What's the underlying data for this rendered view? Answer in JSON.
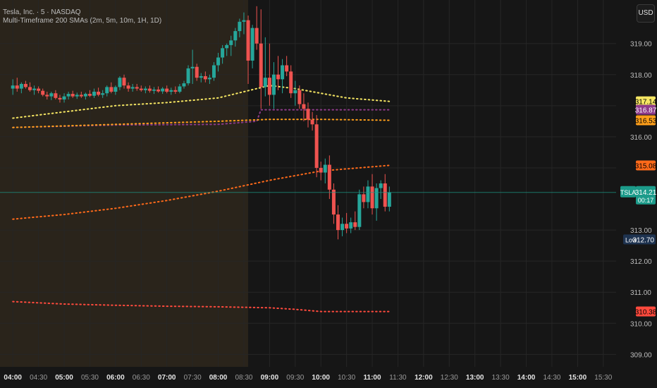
{
  "header": {
    "symbol_line": "Tesla, Inc. · 5 · NASDAQ",
    "indicator_line": "Multi-Timeframe 200 SMAs (2m, 5m, 10m, 1H, 1D)"
  },
  "currency_button": "USD",
  "price_scale_labels": [
    "319.00",
    "318.00",
    "316.00",
    "313.00",
    "312.00",
    "311.00",
    "310.00",
    "309.00"
  ],
  "time_labels": [
    {
      "t": "04:00",
      "bold": true
    },
    {
      "t": "04:30",
      "bold": false
    },
    {
      "t": "05:00",
      "bold": true
    },
    {
      "t": "05:30",
      "bold": false
    },
    {
      "t": "06:00",
      "bold": true
    },
    {
      "t": "06:30",
      "bold": false
    },
    {
      "t": "07:00",
      "bold": true
    },
    {
      "t": "07:30",
      "bold": false
    },
    {
      "t": "08:00",
      "bold": true
    },
    {
      "t": "08:30",
      "bold": false
    },
    {
      "t": "09:00",
      "bold": true
    },
    {
      "t": "09:30",
      "bold": false
    },
    {
      "t": "10:00",
      "bold": true
    },
    {
      "t": "10:30",
      "bold": false
    },
    {
      "t": "11:00",
      "bold": true
    },
    {
      "t": "11:30",
      "bold": false
    },
    {
      "t": "12:00",
      "bold": true
    },
    {
      "t": "12:30",
      "bold": false
    },
    {
      "t": "13:00",
      "bold": true
    },
    {
      "t": "13:30",
      "bold": false
    },
    {
      "t": "14:00",
      "bold": true
    },
    {
      "t": "14:30",
      "bold": false
    },
    {
      "t": "15:00",
      "bold": true
    },
    {
      "t": "15:30",
      "bold": false
    }
  ],
  "tags": [
    {
      "value": "317.14",
      "color": "#f5e663",
      "text_color": "#000000"
    },
    {
      "value": "316.87",
      "color": "#8e3a8a",
      "text_color": "#ffffff"
    },
    {
      "value": "316.53",
      "color": "#ff9f1a",
      "text_color": "#000000"
    },
    {
      "value": "315.08",
      "color": "#ff6a1a",
      "text_color": "#000000"
    },
    {
      "value": "310.38",
      "color": "#ff4a3d",
      "text_color": "#000000"
    }
  ],
  "current_price": {
    "symbol": "TSLA",
    "value": "314.21",
    "countdown": "00:17",
    "color": "#1c9b8a"
  },
  "low_marker": {
    "label": "Low",
    "value": "312.70",
    "color": "#1e3350"
  },
  "colors": {
    "up": "#26a69a",
    "down": "#ef5350",
    "premarket_bg": "#2a241b",
    "grid": "#262626"
  },
  "chart_data": {
    "type": "candlestick",
    "title": "Tesla, Inc. · 5 · NASDAQ",
    "interval": "5m",
    "ylim": [
      308.6,
      320.4
    ],
    "y_ticks": [
      309,
      310,
      311,
      312,
      313,
      315,
      316,
      317,
      318,
      319
    ],
    "x_range": [
      "03:45",
      "15:45"
    ],
    "premarket_end": "08:35",
    "candles": [
      {
        "t": "04:00",
        "o": 317.55,
        "h": 317.85,
        "l": 317.35,
        "c": 317.65
      },
      {
        "t": "04:05",
        "o": 317.65,
        "h": 317.9,
        "l": 317.45,
        "c": 317.55
      },
      {
        "t": "04:10",
        "o": 317.55,
        "h": 317.75,
        "l": 317.4,
        "c": 317.7
      },
      {
        "t": "04:15",
        "o": 317.7,
        "h": 317.8,
        "l": 317.55,
        "c": 317.6
      },
      {
        "t": "04:20",
        "o": 317.6,
        "h": 317.75,
        "l": 317.45,
        "c": 317.5
      },
      {
        "t": "04:25",
        "o": 317.5,
        "h": 317.65,
        "l": 317.35,
        "c": 317.55
      },
      {
        "t": "04:30",
        "o": 317.55,
        "h": 317.62,
        "l": 317.4,
        "c": 317.48
      },
      {
        "t": "04:35",
        "o": 317.48,
        "h": 317.55,
        "l": 317.3,
        "c": 317.35
      },
      {
        "t": "04:40",
        "o": 317.35,
        "h": 317.45,
        "l": 317.2,
        "c": 317.3
      },
      {
        "t": "04:45",
        "o": 317.3,
        "h": 317.45,
        "l": 317.18,
        "c": 317.4
      },
      {
        "t": "04:50",
        "o": 317.4,
        "h": 317.5,
        "l": 317.2,
        "c": 317.25
      },
      {
        "t": "04:55",
        "o": 317.25,
        "h": 317.35,
        "l": 317.1,
        "c": 317.2
      },
      {
        "t": "05:00",
        "o": 317.2,
        "h": 317.4,
        "l": 317.1,
        "c": 317.3
      },
      {
        "t": "05:05",
        "o": 317.3,
        "h": 317.45,
        "l": 317.2,
        "c": 317.38
      },
      {
        "t": "05:10",
        "o": 317.38,
        "h": 317.48,
        "l": 317.25,
        "c": 317.3
      },
      {
        "t": "05:15",
        "o": 317.3,
        "h": 317.42,
        "l": 317.22,
        "c": 317.35
      },
      {
        "t": "05:20",
        "o": 317.35,
        "h": 317.45,
        "l": 317.25,
        "c": 317.3
      },
      {
        "t": "05:25",
        "o": 317.3,
        "h": 317.42,
        "l": 317.2,
        "c": 317.38
      },
      {
        "t": "05:30",
        "o": 317.38,
        "h": 317.5,
        "l": 317.28,
        "c": 317.32
      },
      {
        "t": "05:35",
        "o": 317.32,
        "h": 317.55,
        "l": 317.25,
        "c": 317.45
      },
      {
        "t": "05:40",
        "o": 317.45,
        "h": 317.58,
        "l": 317.3,
        "c": 317.35
      },
      {
        "t": "05:45",
        "o": 317.35,
        "h": 317.5,
        "l": 317.25,
        "c": 317.4
      },
      {
        "t": "05:50",
        "o": 317.4,
        "h": 317.65,
        "l": 317.3,
        "c": 317.6
      },
      {
        "t": "05:55",
        "o": 317.6,
        "h": 317.75,
        "l": 317.4,
        "c": 317.45
      },
      {
        "t": "06:00",
        "o": 317.45,
        "h": 317.65,
        "l": 317.35,
        "c": 317.6
      },
      {
        "t": "06:05",
        "o": 317.6,
        "h": 317.95,
        "l": 317.5,
        "c": 317.9
      },
      {
        "t": "06:10",
        "o": 317.9,
        "h": 318.0,
        "l": 317.55,
        "c": 317.65
      },
      {
        "t": "06:15",
        "o": 317.65,
        "h": 317.75,
        "l": 317.45,
        "c": 317.55
      },
      {
        "t": "06:20",
        "o": 317.55,
        "h": 317.7,
        "l": 317.45,
        "c": 317.6
      },
      {
        "t": "06:25",
        "o": 317.6,
        "h": 317.7,
        "l": 317.48,
        "c": 317.55
      },
      {
        "t": "06:30",
        "o": 317.55,
        "h": 317.65,
        "l": 317.45,
        "c": 317.5
      },
      {
        "t": "06:35",
        "o": 317.5,
        "h": 317.62,
        "l": 317.4,
        "c": 317.55
      },
      {
        "t": "06:40",
        "o": 317.55,
        "h": 317.65,
        "l": 317.42,
        "c": 317.48
      },
      {
        "t": "06:45",
        "o": 317.48,
        "h": 317.6,
        "l": 317.38,
        "c": 317.52
      },
      {
        "t": "06:50",
        "o": 317.52,
        "h": 317.62,
        "l": 317.42,
        "c": 317.46
      },
      {
        "t": "06:55",
        "o": 317.46,
        "h": 317.6,
        "l": 317.38,
        "c": 317.55
      },
      {
        "t": "07:00",
        "o": 317.55,
        "h": 317.65,
        "l": 317.4,
        "c": 317.45
      },
      {
        "t": "07:05",
        "o": 317.45,
        "h": 317.58,
        "l": 317.35,
        "c": 317.5
      },
      {
        "t": "07:10",
        "o": 317.5,
        "h": 317.62,
        "l": 317.38,
        "c": 317.45
      },
      {
        "t": "07:15",
        "o": 317.45,
        "h": 317.7,
        "l": 317.4,
        "c": 317.62
      },
      {
        "t": "07:20",
        "o": 317.62,
        "h": 317.8,
        "l": 317.55,
        "c": 317.72
      },
      {
        "t": "07:25",
        "o": 317.72,
        "h": 318.3,
        "l": 317.65,
        "c": 318.2
      },
      {
        "t": "07:30",
        "o": 318.2,
        "h": 318.8,
        "l": 317.7,
        "c": 318.25
      },
      {
        "t": "07:35",
        "o": 318.25,
        "h": 318.35,
        "l": 317.8,
        "c": 317.9
      },
      {
        "t": "07:40",
        "o": 317.9,
        "h": 318.05,
        "l": 317.75,
        "c": 317.95
      },
      {
        "t": "07:45",
        "o": 317.95,
        "h": 318.1,
        "l": 317.75,
        "c": 317.85
      },
      {
        "t": "07:50",
        "o": 317.85,
        "h": 318.0,
        "l": 317.7,
        "c": 317.9
      },
      {
        "t": "07:55",
        "o": 317.9,
        "h": 318.4,
        "l": 317.8,
        "c": 318.3
      },
      {
        "t": "08:00",
        "o": 318.3,
        "h": 318.7,
        "l": 318.1,
        "c": 318.55
      },
      {
        "t": "08:05",
        "o": 318.55,
        "h": 318.95,
        "l": 318.35,
        "c": 318.85
      },
      {
        "t": "08:10",
        "o": 318.85,
        "h": 319.0,
        "l": 318.6,
        "c": 318.95
      },
      {
        "t": "08:15",
        "o": 318.95,
        "h": 319.25,
        "l": 318.6,
        "c": 319.1
      },
      {
        "t": "08:20",
        "o": 319.1,
        "h": 319.5,
        "l": 318.9,
        "c": 319.4
      },
      {
        "t": "08:25",
        "o": 319.4,
        "h": 319.8,
        "l": 319.2,
        "c": 319.7
      },
      {
        "t": "08:30",
        "o": 319.7,
        "h": 320.0,
        "l": 319.3,
        "c": 319.75
      },
      {
        "t": "08:35",
        "o": 319.75,
        "h": 319.9,
        "l": 317.7,
        "c": 318.45
      },
      {
        "t": "08:40",
        "o": 318.45,
        "h": 319.6,
        "l": 318.2,
        "c": 319.5
      },
      {
        "t": "08:45",
        "o": 319.5,
        "h": 320.2,
        "l": 318.8,
        "c": 319.0
      },
      {
        "t": "08:50",
        "o": 319.0,
        "h": 320.1,
        "l": 316.9,
        "c": 317.6
      },
      {
        "t": "08:55",
        "o": 317.6,
        "h": 319.2,
        "l": 317.3,
        "c": 317.9
      },
      {
        "t": "09:00",
        "o": 317.9,
        "h": 319.0,
        "l": 317.0,
        "c": 317.35
      },
      {
        "t": "09:05",
        "o": 317.35,
        "h": 318.4,
        "l": 316.9,
        "c": 318.0
      },
      {
        "t": "09:10",
        "o": 318.0,
        "h": 318.6,
        "l": 317.5,
        "c": 317.85
      },
      {
        "t": "09:15",
        "o": 317.85,
        "h": 318.5,
        "l": 317.4,
        "c": 318.3
      },
      {
        "t": "09:20",
        "o": 318.3,
        "h": 318.6,
        "l": 317.95,
        "c": 318.1
      },
      {
        "t": "09:25",
        "o": 318.1,
        "h": 318.3,
        "l": 317.25,
        "c": 317.4
      },
      {
        "t": "09:30",
        "o": 317.4,
        "h": 317.8,
        "l": 317.0,
        "c": 317.5
      },
      {
        "t": "09:35",
        "o": 317.5,
        "h": 317.65,
        "l": 316.9,
        "c": 317.05
      },
      {
        "t": "09:40",
        "o": 317.05,
        "h": 317.4,
        "l": 316.5,
        "c": 316.9
      },
      {
        "t": "09:45",
        "o": 316.9,
        "h": 317.1,
        "l": 316.3,
        "c": 316.55
      },
      {
        "t": "09:50",
        "o": 316.55,
        "h": 316.8,
        "l": 316.2,
        "c": 316.4
      },
      {
        "t": "09:55",
        "o": 316.4,
        "h": 316.7,
        "l": 314.7,
        "c": 315.0
      },
      {
        "t": "10:00",
        "o": 315.0,
        "h": 315.2,
        "l": 314.6,
        "c": 314.85
      },
      {
        "t": "10:05",
        "o": 314.85,
        "h": 315.3,
        "l": 314.5,
        "c": 315.1
      },
      {
        "t": "10:10",
        "o": 315.1,
        "h": 315.4,
        "l": 314.0,
        "c": 314.3
      },
      {
        "t": "10:15",
        "o": 314.3,
        "h": 314.5,
        "l": 313.2,
        "c": 313.5
      },
      {
        "t": "10:20",
        "o": 313.5,
        "h": 313.8,
        "l": 312.7,
        "c": 313.0
      },
      {
        "t": "10:25",
        "o": 313.0,
        "h": 313.4,
        "l": 312.8,
        "c": 313.2
      },
      {
        "t": "10:30",
        "o": 313.2,
        "h": 313.55,
        "l": 312.9,
        "c": 313.05
      },
      {
        "t": "10:35",
        "o": 313.05,
        "h": 313.4,
        "l": 312.9,
        "c": 313.25
      },
      {
        "t": "10:40",
        "o": 313.25,
        "h": 313.6,
        "l": 313.0,
        "c": 313.1
      },
      {
        "t": "10:45",
        "o": 313.1,
        "h": 314.3,
        "l": 313.0,
        "c": 314.15
      },
      {
        "t": "10:50",
        "o": 314.15,
        "h": 314.4,
        "l": 313.7,
        "c": 313.9
      },
      {
        "t": "10:55",
        "o": 313.9,
        "h": 314.6,
        "l": 313.7,
        "c": 314.4
      },
      {
        "t": "11:00",
        "o": 314.4,
        "h": 314.8,
        "l": 313.5,
        "c": 313.7
      },
      {
        "t": "11:05",
        "o": 313.7,
        "h": 314.5,
        "l": 313.3,
        "c": 314.35
      },
      {
        "t": "11:10",
        "o": 314.35,
        "h": 314.6,
        "l": 314.0,
        "c": 314.5
      },
      {
        "t": "11:15",
        "o": 314.5,
        "h": 314.8,
        "l": 313.6,
        "c": 313.75
      },
      {
        "t": "11:20",
        "o": 313.75,
        "h": 314.4,
        "l": 313.6,
        "c": 314.21
      }
    ],
    "sma_series": [
      {
        "color": "#f5e663",
        "points": [
          [
            "04:00",
            316.6
          ],
          [
            "05:00",
            316.8
          ],
          [
            "06:00",
            317.0
          ],
          [
            "07:00",
            317.1
          ],
          [
            "08:00",
            317.25
          ],
          [
            "08:30",
            317.45
          ],
          [
            "09:00",
            317.65
          ],
          [
            "09:30",
            317.55
          ],
          [
            "10:00",
            317.4
          ],
          [
            "10:30",
            317.25
          ],
          [
            "11:20",
            317.14
          ]
        ]
      },
      {
        "color": "#8e3a8a",
        "points": [
          [
            "04:00",
            316.3
          ],
          [
            "06:00",
            316.38
          ],
          [
            "08:00",
            316.4
          ],
          [
            "08:45",
            316.5
          ],
          [
            "08:50",
            316.87
          ],
          [
            "11:20",
            316.87
          ]
        ]
      },
      {
        "color": "#ff9f1a",
        "points": [
          [
            "04:00",
            316.3
          ],
          [
            "05:00",
            316.35
          ],
          [
            "06:00",
            316.4
          ],
          [
            "07:00",
            316.45
          ],
          [
            "08:00",
            316.5
          ],
          [
            "09:00",
            316.56
          ],
          [
            "10:00",
            316.56
          ],
          [
            "11:20",
            316.53
          ]
        ]
      },
      {
        "color": "#ff6a1a",
        "points": [
          [
            "04:00",
            313.35
          ],
          [
            "05:00",
            313.5
          ],
          [
            "06:00",
            313.7
          ],
          [
            "07:00",
            313.95
          ],
          [
            "08:00",
            314.25
          ],
          [
            "09:00",
            314.6
          ],
          [
            "10:00",
            314.9
          ],
          [
            "11:20",
            315.08
          ]
        ]
      },
      {
        "color": "#ff4a3d",
        "points": [
          [
            "04:00",
            310.7
          ],
          [
            "05:00",
            310.62
          ],
          [
            "06:00",
            310.58
          ],
          [
            "07:00",
            310.55
          ],
          [
            "08:00",
            310.53
          ],
          [
            "09:00",
            310.5
          ],
          [
            "09:30",
            310.45
          ],
          [
            "10:00",
            310.38
          ],
          [
            "11:20",
            310.38
          ]
        ]
      }
    ]
  }
}
